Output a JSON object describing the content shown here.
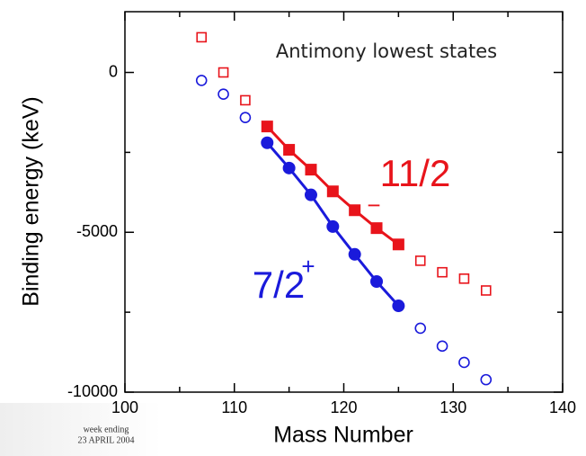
{
  "chart_data": {
    "type": "scatter",
    "title": "Antimony lowest states",
    "xlabel": "Mass Number",
    "ylabel": "Binding energy (keV)",
    "xlim": [
      100,
      140
    ],
    "ylim": [
      -10000,
      1900
    ],
    "xticks": [
      100,
      110,
      120,
      130,
      140
    ],
    "yticks": [
      -10000,
      -5000,
      0
    ],
    "xminorticks": [
      105,
      115,
      125,
      135
    ],
    "yminorticks": [
      -7500,
      -2500
    ],
    "series": [
      {
        "color": "#e8141b",
        "marker": "open-square",
        "line": false,
        "x": [
          107,
          109,
          111
        ],
        "values": [
          1100,
          0,
          -870
        ]
      },
      {
        "color": "#e8141b",
        "marker": "filled-square",
        "line": true,
        "x": [
          113,
          115,
          117,
          119,
          121,
          123,
          125
        ],
        "values": [
          -1690,
          -2420,
          -3040,
          -3720,
          -4310,
          -4870,
          -5380
        ]
      },
      {
        "color": "#e8141b",
        "marker": "open-square",
        "line": false,
        "x": [
          127,
          129,
          131,
          133
        ],
        "values": [
          -5890,
          -6250,
          -6450,
          -6820
        ]
      },
      {
        "color": "#1a1adb",
        "marker": "open-circle",
        "line": false,
        "x": [
          107,
          109,
          111
        ],
        "values": [
          -250,
          -680,
          -1410
        ]
      },
      {
        "color": "#1a1adb",
        "marker": "filled-circle",
        "line": true,
        "x": [
          113,
          115,
          117,
          119,
          121,
          123,
          125
        ],
        "values": [
          -2200,
          -2990,
          -3830,
          -4820,
          -5690,
          -6540,
          -7300
        ]
      },
      {
        "color": "#1a1adb",
        "marker": "open-circle",
        "line": false,
        "x": [
          127,
          129,
          131,
          133
        ],
        "values": [
          -8000,
          -8560,
          -9070,
          -9610
        ]
      }
    ],
    "annotations": [
      {
        "text": "11/2",
        "sup": "−",
        "color": "#e8141b"
      },
      {
        "text": "7/2",
        "sup": "+",
        "color": "#1a1adb"
      }
    ]
  },
  "paper_fragment": {
    "line1": "week ending",
    "line2": "23 APRIL 2004"
  }
}
